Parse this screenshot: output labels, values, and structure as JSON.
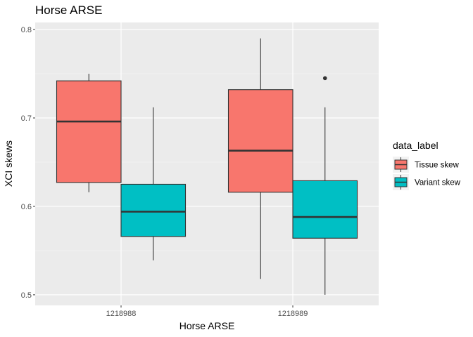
{
  "chart_data": {
    "type": "boxplot",
    "title": "Horse ARSE",
    "xlabel": "Horse ARSE",
    "ylabel": "XCI skews",
    "ylim": [
      0.488,
      0.808
    ],
    "yticks": [
      0.5,
      0.6,
      0.7,
      0.8
    ],
    "ytick_labels": [
      "0.5",
      "0.6",
      "0.7",
      "0.8"
    ],
    "grid": true,
    "legend_position": "right",
    "categories": [
      "1218988",
      "1218989"
    ],
    "legend": {
      "title": "data_label"
    },
    "series": [
      {
        "name": "Tissue skew",
        "color": "#F8766D",
        "boxes": [
          {
            "category": "1218988",
            "min": 0.616,
            "q1": 0.627,
            "median": 0.696,
            "q3": 0.742,
            "max": 0.75,
            "outliers": []
          },
          {
            "category": "1218989",
            "min": 0.518,
            "q1": 0.616,
            "median": 0.663,
            "q3": 0.732,
            "max": 0.79,
            "outliers": []
          }
        ]
      },
      {
        "name": "Variant skew",
        "color": "#00BFC4",
        "boxes": [
          {
            "category": "1218988",
            "min": 0.539,
            "q1": 0.566,
            "median": 0.594,
            "q3": 0.625,
            "max": 0.712,
            "outliers": []
          },
          {
            "category": "1218989",
            "min": 0.5,
            "q1": 0.564,
            "median": 0.588,
            "q3": 0.629,
            "max": 0.712,
            "outliers": [
              0.745
            ]
          }
        ]
      }
    ]
  }
}
